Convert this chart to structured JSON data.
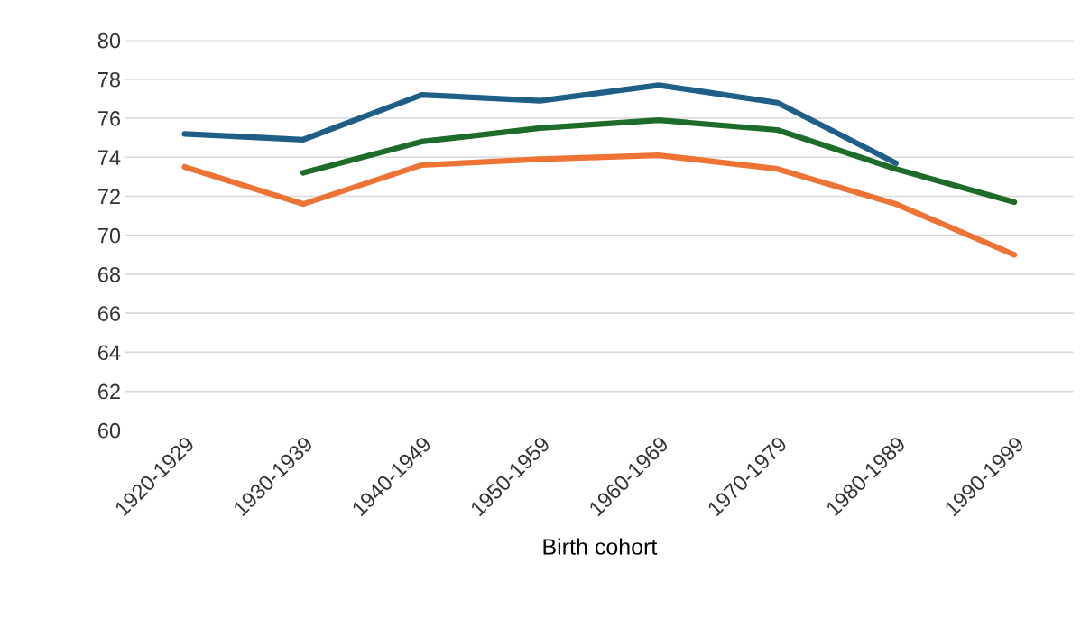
{
  "chart_data": {
    "type": "line",
    "xlabel": "Birth cohort",
    "categories": [
      "1920-1929",
      "1930-1939",
      "1940-1949",
      "1950-1959",
      "1960-1969",
      "1970-1979",
      "1980-1989",
      "1990-1999"
    ],
    "series": [
      {
        "color": "#1f5f87",
        "values": [
          75.2,
          74.9,
          77.2,
          76.9,
          77.7,
          76.8,
          73.7,
          null
        ]
      },
      {
        "color": "#ed7434",
        "values": [
          73.5,
          71.6,
          73.6,
          73.9,
          74.1,
          73.4,
          71.6,
          69.0
        ]
      },
      {
        "color": "#1e6b2a",
        "values": [
          null,
          73.2,
          74.8,
          75.5,
          75.9,
          75.4,
          73.4,
          71.7
        ]
      }
    ],
    "ylim": [
      60,
      80
    ],
    "yticks": [
      60,
      62,
      64,
      66,
      68,
      70,
      72,
      74,
      76,
      78,
      80
    ],
    "grid": "y",
    "marker": "none",
    "line_style": "solid"
  }
}
